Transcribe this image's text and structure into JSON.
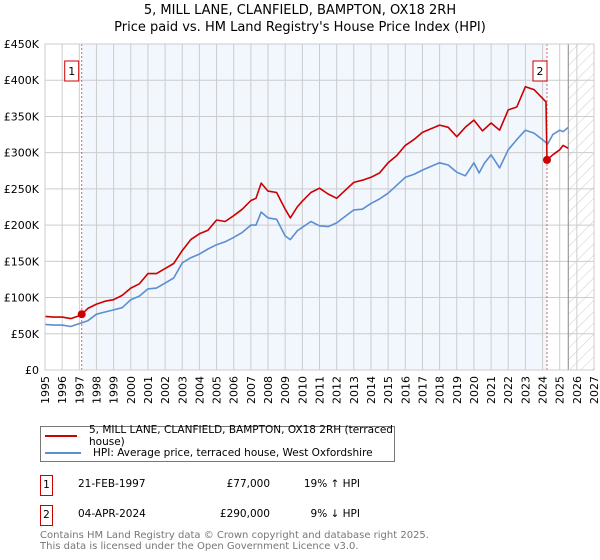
{
  "chart_data": {
    "type": "line",
    "title": "5, MILL LANE, CLANFIELD, BAMPTON, OX18 2RH",
    "subtitle": "Price paid vs. HM Land Registry's House Price Index (HPI)",
    "xlim": [
      1995,
      2027
    ],
    "ylim": [
      0,
      450000
    ],
    "grid": true,
    "x_ticks": [
      "1995",
      "1996",
      "1997",
      "1998",
      "1999",
      "2000",
      "2001",
      "2002",
      "2003",
      "2004",
      "2005",
      "2006",
      "2007",
      "2008",
      "2009",
      "2010",
      "2011",
      "2012",
      "2013",
      "2014",
      "2015",
      "2016",
      "2017",
      "2018",
      "2019",
      "2020",
      "2021",
      "2022",
      "2023",
      "2024",
      "2025",
      "2026",
      "2027"
    ],
    "y_ticks": [
      {
        "v": 0,
        "label": "£0"
      },
      {
        "v": 50000,
        "label": "£50K"
      },
      {
        "v": 100000,
        "label": "£100K"
      },
      {
        "v": 150000,
        "label": "£150K"
      },
      {
        "v": 200000,
        "label": "£200K"
      },
      {
        "v": 250000,
        "label": "£250K"
      },
      {
        "v": 300000,
        "label": "£300K"
      },
      {
        "v": 350000,
        "label": "£350K"
      },
      {
        "v": 400000,
        "label": "£400K"
      },
      {
        "v": 450000,
        "label": "£450K"
      }
    ],
    "shaded_range": [
      1997.14,
      2024.26
    ],
    "forecast_hatch_from": 2025.5,
    "series": [
      {
        "name": "5, MILL LANE, CLANFIELD, BAMPTON, OX18 2RH (terraced house)",
        "color": "#cc0000",
        "x": [
          1995,
          1995.5,
          1996,
          1996.5,
          1997,
          1997.14,
          1997.5,
          1998,
          1998.5,
          1999,
          1999.5,
          2000,
          2000.5,
          2001,
          2001.5,
          2002,
          2002.5,
          2003,
          2003.5,
          2004,
          2004.5,
          2005,
          2005.5,
          2006,
          2006.5,
          2007,
          2007.3,
          2007.6,
          2008,
          2008.5,
          2009,
          2009.3,
          2009.7,
          2010,
          2010.5,
          2011,
          2011.5,
          2012,
          2012.5,
          2013,
          2013.5,
          2014,
          2014.5,
          2015,
          2015.5,
          2016,
          2016.5,
          2017,
          2017.5,
          2018,
          2018.5,
          2019,
          2019.5,
          2020,
          2020.5,
          2021,
          2021.5,
          2022,
          2022.5,
          2023,
          2023.5,
          2024,
          2024.2,
          2024.26,
          2024.6,
          2025,
          2025.2,
          2025.5
        ],
        "y": [
          74000,
          73000,
          73000,
          71000,
          75000,
          77000,
          85000,
          91000,
          95000,
          97000,
          103000,
          113000,
          119000,
          133000,
          133000,
          140000,
          147000,
          165000,
          180000,
          188000,
          193000,
          207000,
          205000,
          213000,
          222000,
          234000,
          237000,
          258000,
          247000,
          245000,
          222000,
          210000,
          225000,
          233000,
          245000,
          251000,
          243000,
          237000,
          248000,
          259000,
          262000,
          266000,
          272000,
          286000,
          296000,
          310000,
          318000,
          328000,
          333000,
          338000,
          335000,
          322000,
          335000,
          345000,
          330000,
          341000,
          331000,
          359000,
          363000,
          391000,
          387000,
          375000,
          370000,
          290000,
          297000,
          304000,
          310000,
          306000
        ]
      },
      {
        "name": "HPI: Average price, terraced house, West Oxfordshire",
        "color": "#5b8fd0",
        "x": [
          1995,
          1995.5,
          1996,
          1996.5,
          1997,
          1997.5,
          1998,
          1998.5,
          1999,
          1999.5,
          2000,
          2000.5,
          2001,
          2001.5,
          2002,
          2002.5,
          2003,
          2003.5,
          2004,
          2004.5,
          2005,
          2005.5,
          2006,
          2006.5,
          2007,
          2007.3,
          2007.6,
          2008,
          2008.5,
          2009,
          2009.3,
          2009.7,
          2010,
          2010.5,
          2011,
          2011.5,
          2012,
          2012.5,
          2013,
          2013.5,
          2014,
          2014.5,
          2015,
          2015.5,
          2016,
          2016.5,
          2017,
          2017.5,
          2018,
          2018.5,
          2019,
          2019.5,
          2020,
          2020.3,
          2020.6,
          2021,
          2021.5,
          2022,
          2022.5,
          2023,
          2023.5,
          2024,
          2024.3,
          2024.6,
          2025,
          2025.2,
          2025.5
        ],
        "y": [
          63000,
          62000,
          62000,
          60000,
          64000,
          68000,
          77000,
          80000,
          83000,
          86000,
          97000,
          102000,
          112000,
          113000,
          120000,
          127000,
          148000,
          155000,
          160000,
          167000,
          173000,
          177000,
          183000,
          190000,
          200000,
          200000,
          218000,
          210000,
          208000,
          185000,
          180000,
          192000,
          197000,
          205000,
          199000,
          198000,
          203000,
          212000,
          221000,
          222000,
          230000,
          236000,
          244000,
          255000,
          266000,
          270000,
          276000,
          281000,
          286000,
          283000,
          273000,
          268000,
          286000,
          272000,
          285000,
          297000,
          279000,
          304000,
          318000,
          331000,
          327000,
          318000,
          312000,
          325000,
          331000,
          329000,
          335000
        ]
      }
    ],
    "markers": [
      {
        "label": "1",
        "x": 1997.14,
        "y": 77000
      },
      {
        "label": "2",
        "x": 2024.26,
        "y": 290000
      }
    ]
  },
  "legend": {
    "items": [
      {
        "label": "5, MILL LANE, CLANFIELD, BAMPTON, OX18 2RH (terraced house)",
        "color": "#cc0000"
      },
      {
        "label": "HPI: Average price, terraced house, West Oxfordshire",
        "color": "#5b8fd0"
      }
    ]
  },
  "transactions": [
    {
      "num": "1",
      "date": "21-FEB-1997",
      "price": "£77,000",
      "hpi": "19% ↑ HPI"
    },
    {
      "num": "2",
      "date": "04-APR-2024",
      "price": "£290,000",
      "hpi": "9% ↓ HPI"
    }
  ],
  "footer": {
    "line1": "Contains HM Land Registry data © Crown copyright and database right 2025.",
    "line2": "This data is licensed under the Open Government Licence v3.0."
  }
}
